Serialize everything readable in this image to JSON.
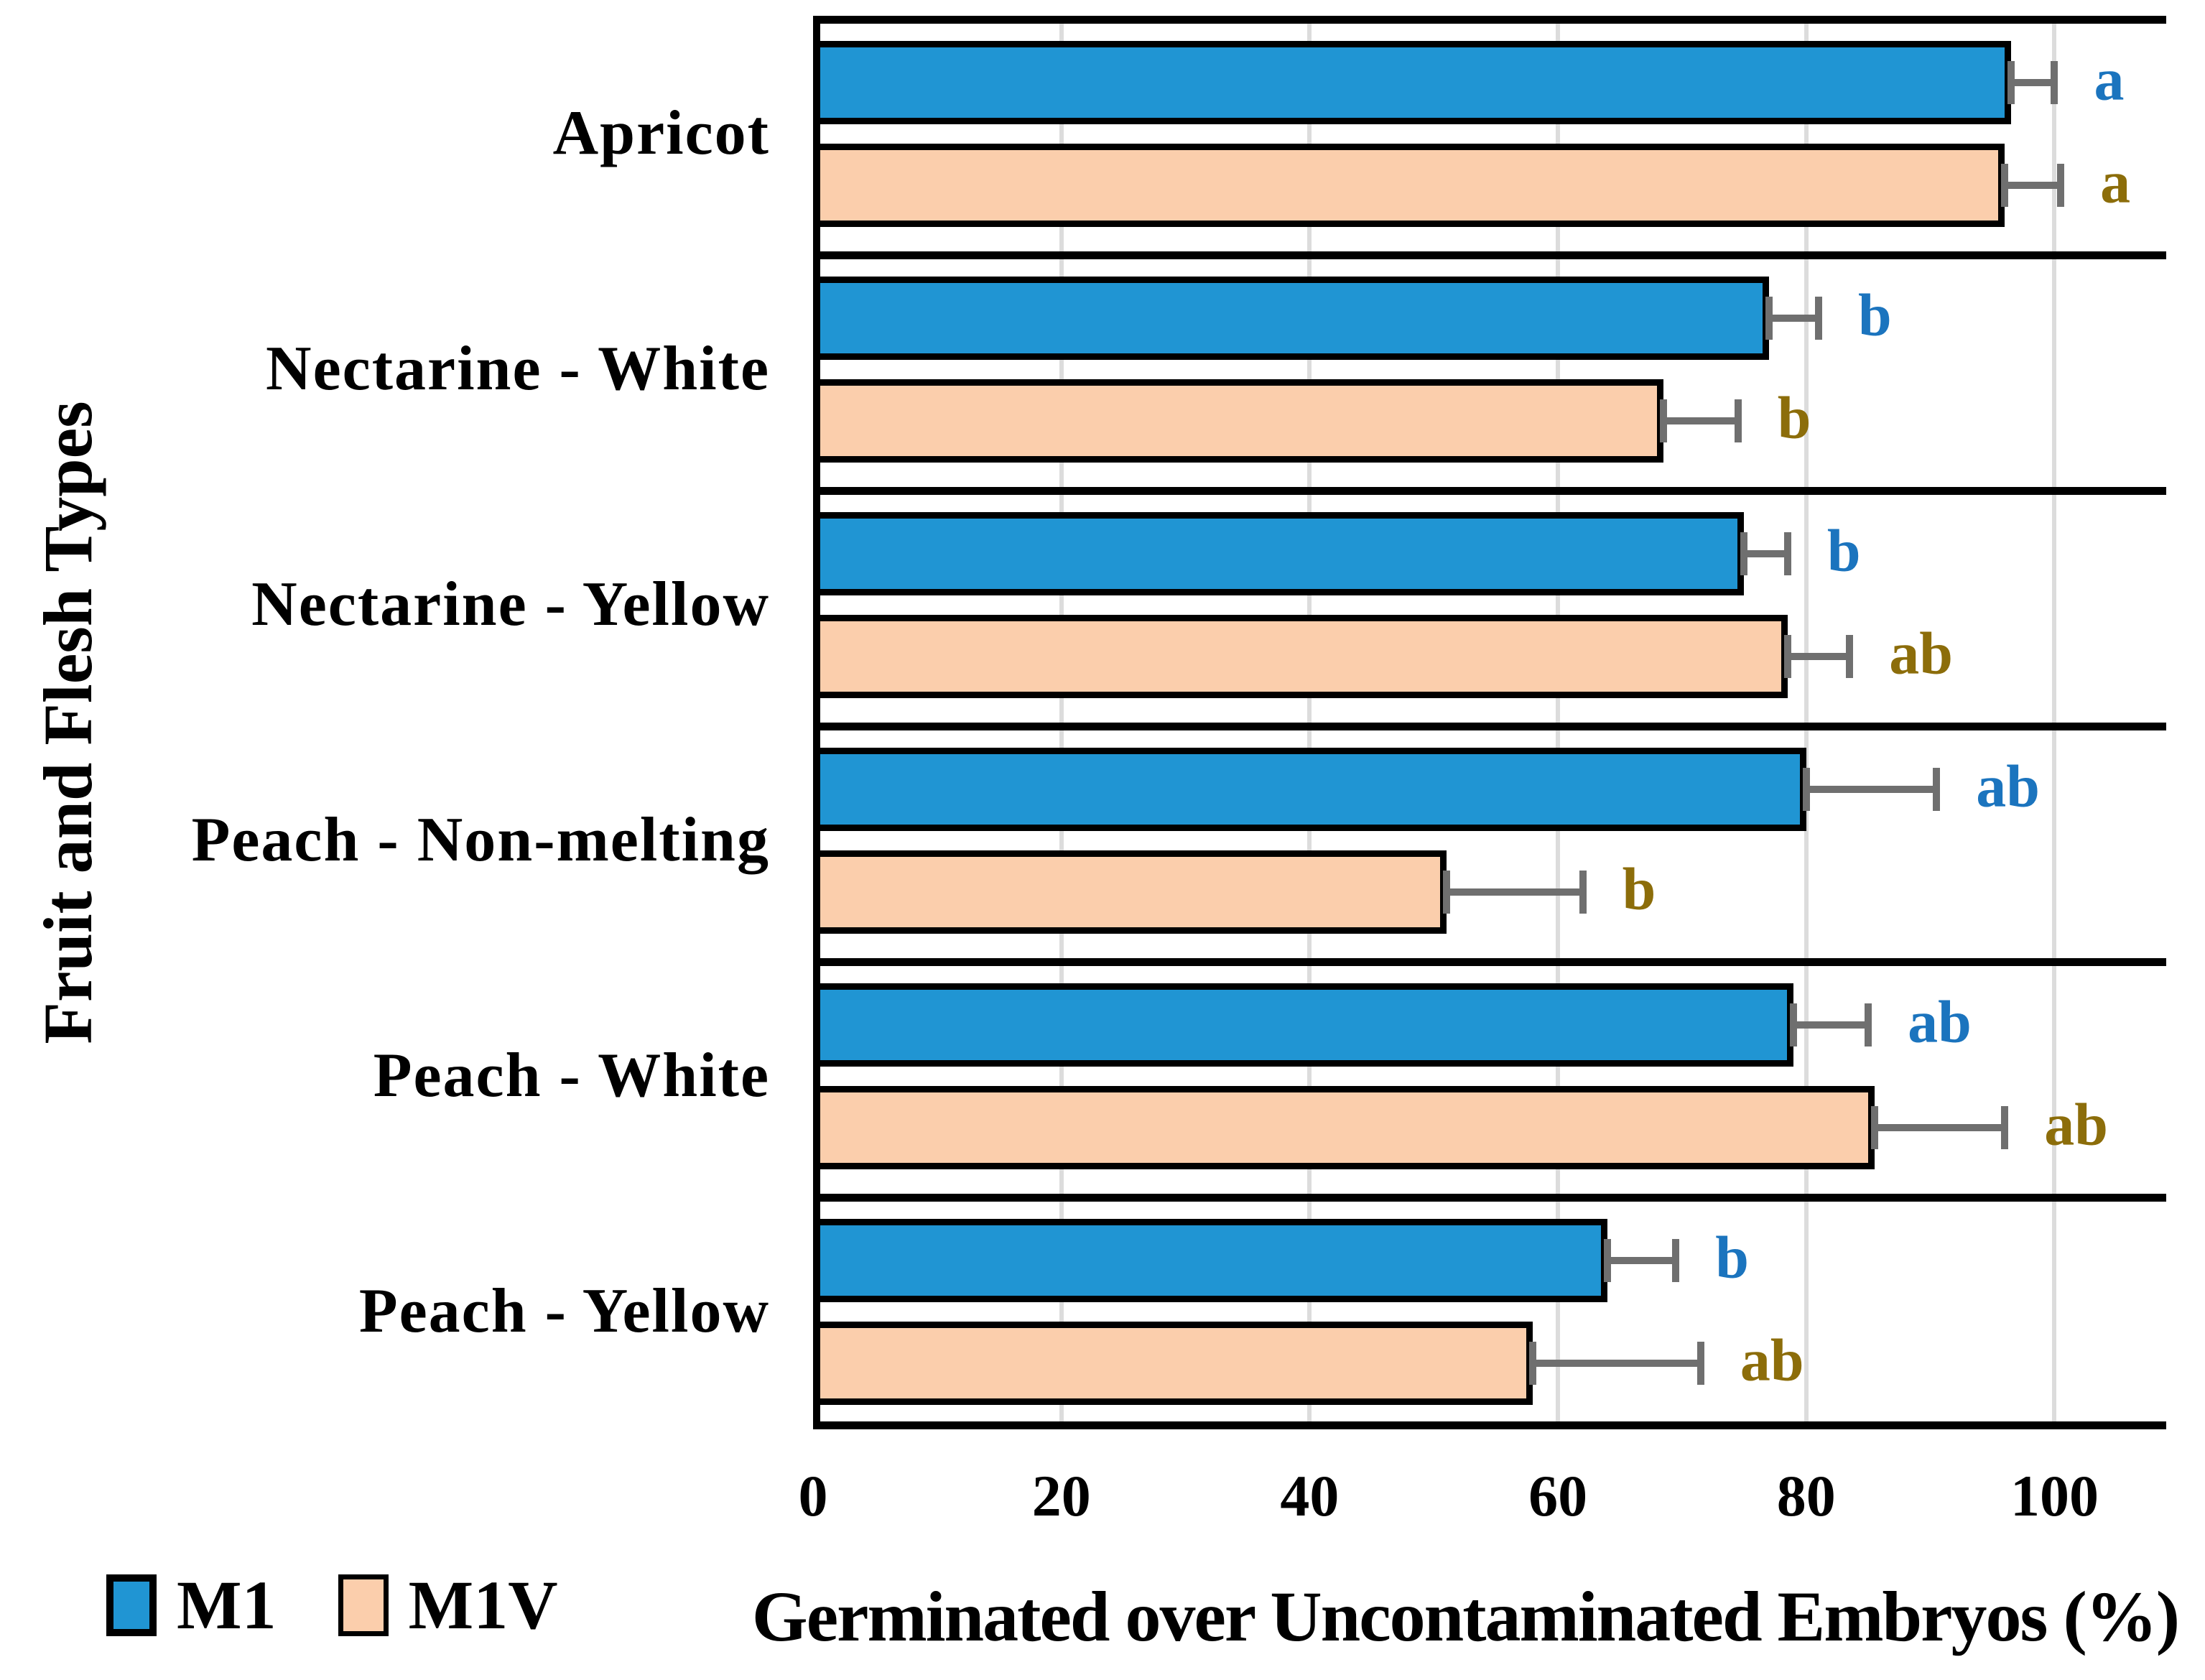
{
  "chart_data": {
    "type": "bar",
    "orientation": "horizontal",
    "xlabel": "Germinated over Uncontaminated Embryos (%)",
    "ylabel": "Fruit and Flesh Types",
    "xlim": [
      0,
      109
    ],
    "xtick_labels": [
      "0",
      "20",
      "40",
      "60",
      "80",
      "100"
    ],
    "xtick_values": [
      0,
      20,
      40,
      60,
      80,
      100
    ],
    "grid": "vertical-light-gray",
    "legend_position": "bottom-left",
    "categories": [
      "Apricot",
      "Nectarine - White",
      "Nectarine - Yellow",
      "Peach - Non-melting",
      "Peach - White",
      "Peach - Yellow"
    ],
    "series": [
      {
        "name": "M1",
        "bar_color": "#2095D3",
        "letter_color": "#1B74BE",
        "values": [
          96.5,
          77,
          75,
          80,
          79,
          64
        ],
        "errors_plus": [
          3.5,
          4,
          3.5,
          10.5,
          6,
          5.5
        ],
        "letters": [
          "a",
          "b",
          "b",
          "ab",
          "ab",
          "b"
        ]
      },
      {
        "name": "M1V",
        "bar_color": "#FBCEAC",
        "letter_color": "#8C6D0A",
        "values": [
          96,
          68.5,
          78.5,
          51,
          85.5,
          58
        ],
        "errors_plus": [
          4.5,
          6,
          5,
          11,
          10.5,
          13.5
        ],
        "letters": [
          "a",
          "b",
          "ab",
          "b",
          "ab",
          "ab"
        ]
      }
    ],
    "colors": {
      "bar_outline": "#000000",
      "error_bar": "#6F6F6F",
      "gridline": "#DCDCDC",
      "frame": "#000000",
      "background": "#FFFFFF"
    }
  },
  "legend": {
    "items": [
      {
        "label": "M1",
        "color": "#2095D3"
      },
      {
        "label": "M1V",
        "color": "#FBCEAC"
      }
    ]
  }
}
